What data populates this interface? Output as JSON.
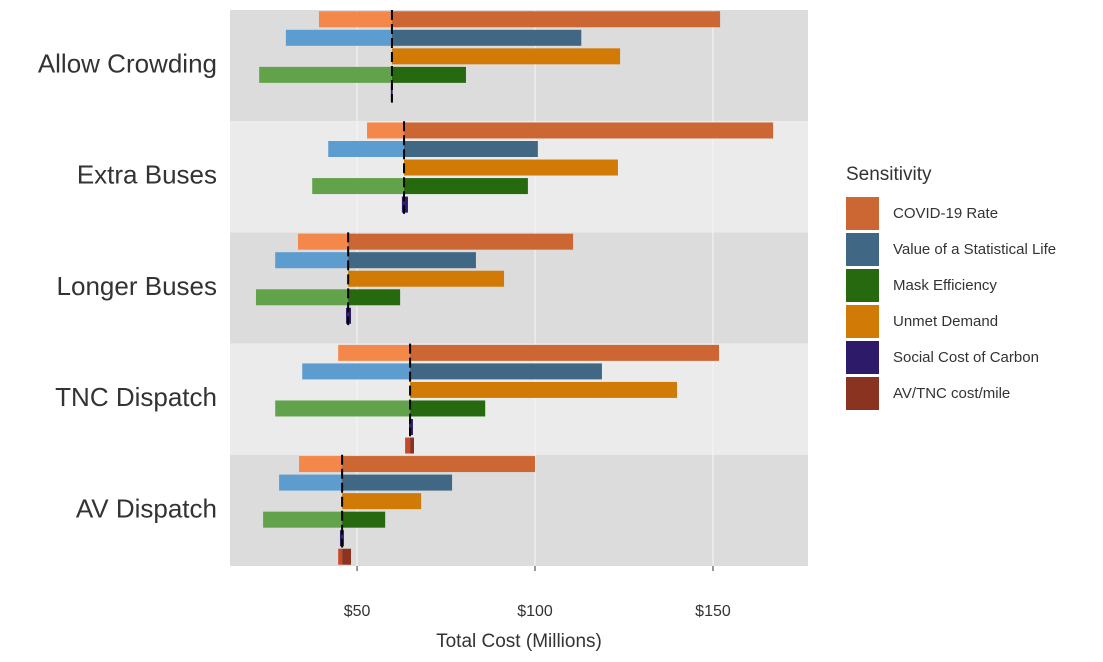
{
  "chart_data": {
    "type": "tornado",
    "x_label": "Total Cost (Millions)",
    "legend_title": "Sensitivity",
    "legend_position": "right",
    "grid": true,
    "categories": [
      "Allow Crowding",
      "Extra Buses",
      "Longer Buses",
      "TNC Dispatch",
      "AV Dispatch"
    ],
    "baseline": [
      59.8,
      63.2,
      47.5,
      64.9,
      45.8
    ],
    "xlim": [
      14.3,
      176.7
    ],
    "xticks": [
      {
        "value": 50,
        "label": "$50"
      },
      {
        "value": 100,
        "label": "$100"
      },
      {
        "value": 150,
        "label": "$150"
      }
    ],
    "series": [
      {
        "name": "COVID-19 Rate",
        "color": "#cc6633",
        "low_color": "#f4874a",
        "low": [
          39.3,
          52.8,
          33.4,
          44.7,
          33.7
        ],
        "high": [
          152,
          166.9,
          110.7,
          151.7,
          100
        ]
      },
      {
        "name": "Value of a Statistical Life",
        "color": "#406784",
        "low_color": "#5c9ccf",
        "low": [
          30,
          41.9,
          27,
          34.6,
          28.1
        ],
        "high": [
          113,
          100.8,
          83.4,
          118.8,
          76.7
        ]
      },
      {
        "name": "Mask Efficiency",
        "color": "#26690f",
        "low_color": "#62a24a",
        "low": [
          22.5,
          37.4,
          21.6,
          27,
          23.6
        ],
        "high": [
          80.6,
          98,
          62.1,
          86,
          57.9
        ]
      },
      {
        "name": "Unmet Demand",
        "color": "#d27a06",
        "low_color": "#d27a06",
        "low": [
          null,
          null,
          null,
          null,
          null
        ],
        "high": [
          123.9,
          123.3,
          91.3,
          139.9,
          68
        ]
      },
      {
        "name": "Social Cost of Carbon",
        "color": "#2d1a68",
        "low_color": "#2d1a68",
        "low": [
          59.5,
          62.6,
          46.9,
          64.6,
          45.2
        ],
        "high": [
          60,
          64.3,
          48.3,
          65.7,
          46.3
        ]
      },
      {
        "name": "AV/TNC cost/mile",
        "color": "#8a3320",
        "low_color": "#c8492a",
        "low": [
          null,
          null,
          null,
          63.5,
          44.7
        ],
        "high": [
          null,
          null,
          null,
          66,
          48.3
        ]
      }
    ]
  }
}
